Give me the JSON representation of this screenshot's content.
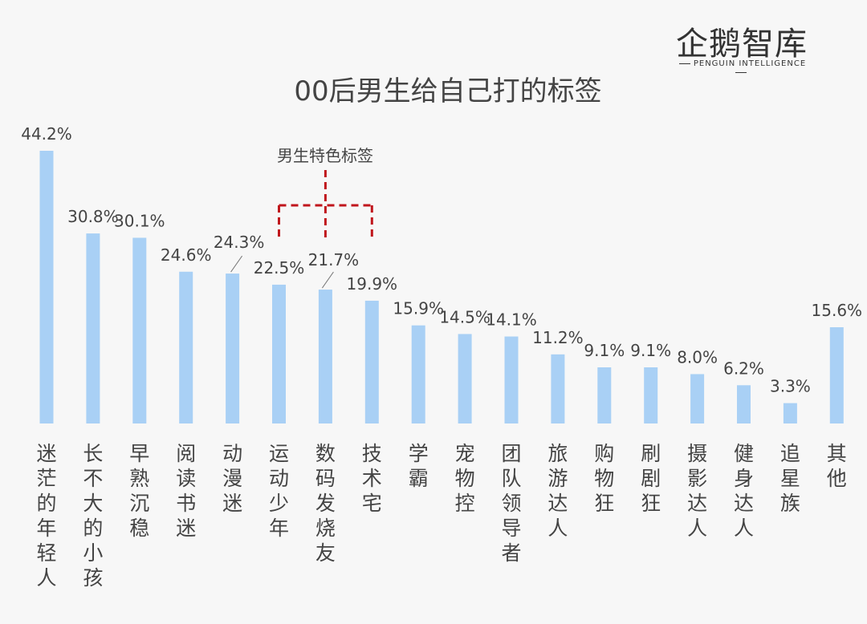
{
  "logo": {
    "name": "企鹅智库",
    "tagline": "PENGUIN INTELLIGENCE"
  },
  "chart_data": {
    "type": "bar",
    "title": "00后男生给自己打的标签",
    "categories": [
      "迷茫的年轻人",
      "长不大的小孩",
      "早熟沉稳",
      "阅读书迷",
      "动漫迷",
      "运动少年",
      "数码发烧友",
      "技术宅",
      "学霸",
      "宠物控",
      "团队领导者",
      "旅游达人",
      "购物狂",
      "刷剧狂",
      "摄影达人",
      "健身达人",
      "追星族",
      "其他"
    ],
    "values": [
      44.2,
      30.8,
      30.1,
      24.6,
      24.3,
      22.5,
      21.7,
      19.9,
      15.9,
      14.5,
      14.1,
      11.2,
      9.1,
      9.1,
      8.0,
      6.2,
      3.3,
      15.6
    ],
    "value_labels": [
      "44.2%",
      "30.8%",
      "30.1%",
      "24.6%",
      "24.3%",
      "22.5%",
      "21.7%",
      "19.9%",
      "15.9%",
      "14.5%",
      "14.1%",
      "11.2%",
      "9.1%",
      "9.1%",
      "8.0%",
      "6.2%",
      "3.3%",
      "15.6%"
    ],
    "ylim": [
      0,
      44.2
    ],
    "bar_color": "#a9d0f5",
    "grid": false,
    "annotation": {
      "text": "男生特色标签",
      "categories": [
        "运动少年",
        "数码发烧友",
        "技术宅"
      ],
      "color": "#c0161c"
    }
  }
}
